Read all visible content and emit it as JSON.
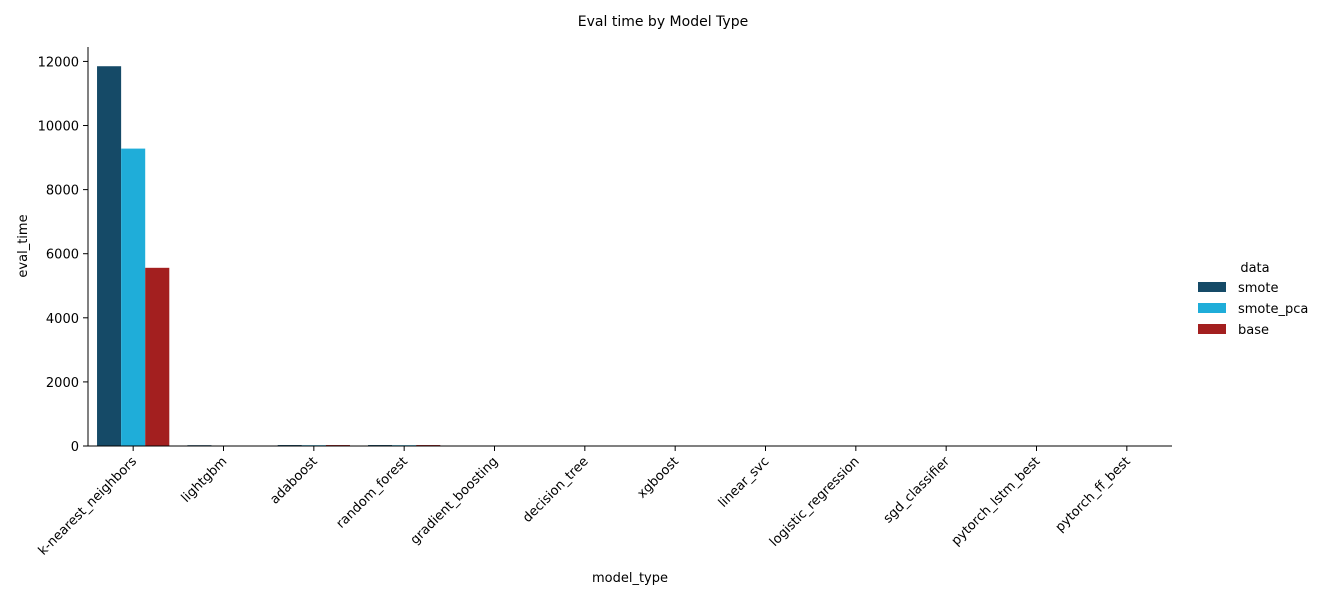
{
  "chart_data": {
    "type": "bar",
    "title": "Eval time by Model Type",
    "xlabel": "model_type",
    "ylabel": "eval_time",
    "ylim": [
      0,
      12450
    ],
    "yticks": [
      0,
      2000,
      4000,
      6000,
      8000,
      10000,
      12000
    ],
    "grid": false,
    "categories": [
      "k-nearest_neighbors",
      "lightgbm",
      "adaboost",
      "random_forest",
      "gradient_boosting",
      "decision_tree",
      "xgboost",
      "linear_svc",
      "logistic_regression",
      "sgd_classifier",
      "pytorch_lstm_best",
      "pytorch_ff_best"
    ],
    "legend": {
      "title": "data",
      "placement": "right"
    },
    "series": [
      {
        "name": "smote",
        "color": "#154a67",
        "values": [
          11850,
          25,
          30,
          30,
          5,
          3,
          4,
          3,
          3,
          2,
          4,
          3
        ]
      },
      {
        "name": "smote_pca",
        "color": "#1fadd9",
        "values": [
          9280,
          5,
          25,
          25,
          3,
          2,
          3,
          2,
          2,
          2,
          3,
          2
        ]
      },
      {
        "name": "base",
        "color": "#a31f1f",
        "values": [
          5560,
          5,
          30,
          30,
          3,
          2,
          3,
          2,
          2,
          2,
          3,
          2
        ]
      }
    ]
  }
}
